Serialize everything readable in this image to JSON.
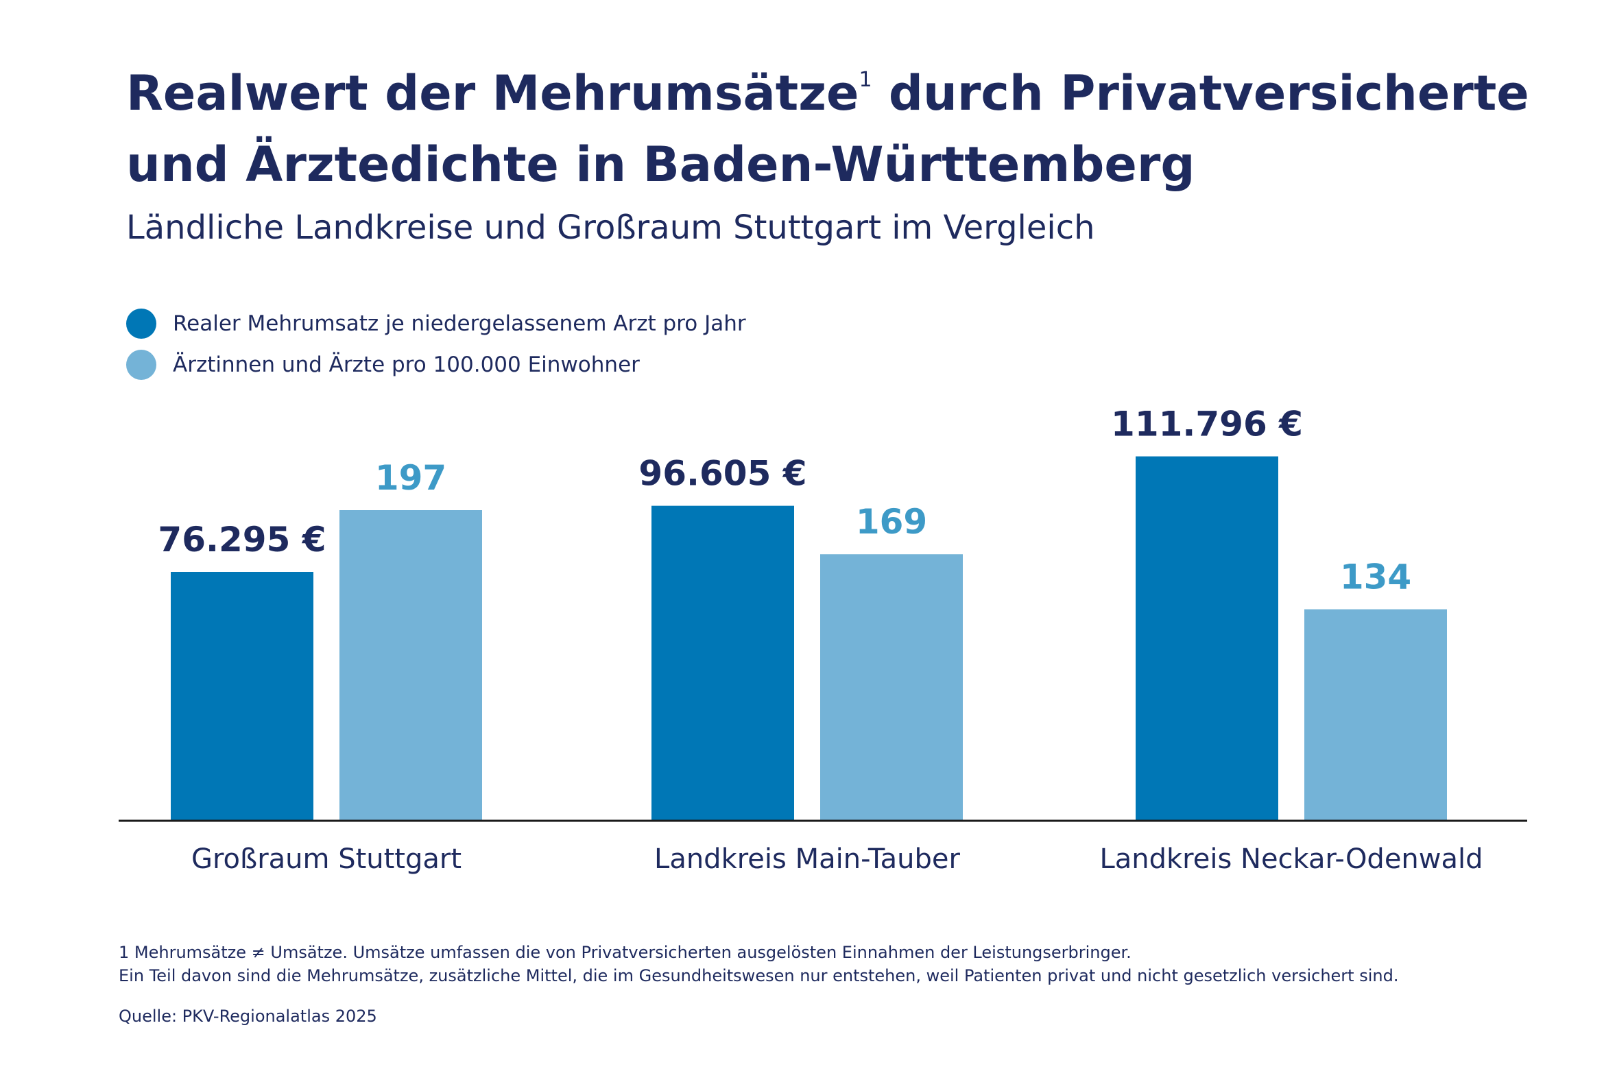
{
  "header": {
    "title_line1_a": "Realwert der Mehrumsätze",
    "title_footnote_mark": "1",
    "title_line1_b": " durch Privatversicherte",
    "title_line2": "und Ärztedichte in Baden-Württemberg",
    "subtitle": "Ländliche Landkreise und Großraum Stuttgart im Vergleich"
  },
  "colors": {
    "series_dark": "#0077b6",
    "series_light": "#74b3d7",
    "label_dark": "#1e2a5e",
    "label_light": "#3d9ac7",
    "axis": "#1a1a1a",
    "text": "#1e2a5e"
  },
  "chart_data": {
    "type": "bar",
    "categories": [
      "Großraum Stuttgart",
      "Landkreis Main-Tauber",
      "Landkreis Neckar-Odenwald"
    ],
    "series": [
      {
        "name": "Realer Mehrumsatz je niedergelassenem Arzt pro Jahr",
        "values": [
          76295,
          96605,
          111796
        ],
        "labels": [
          "76.295 €",
          "96.605 €",
          "111.796 €"
        ],
        "color_key": "series_dark",
        "label_color_key": "label_dark"
      },
      {
        "name": "Ärztinnen und Ärzte pro 100.000 Einwohner",
        "values": [
          197,
          169,
          134
        ],
        "labels": [
          "197",
          "169",
          "134"
        ],
        "color_key": "series_light",
        "label_color_key": "label_light"
      }
    ],
    "legend_position": "top-left",
    "grid": false
  },
  "footnote": {
    "line1": "1  Mehrumsätze ≠ Umsätze. Umsätze umfassen die von Privatversicherten ausgelösten Einnahmen der Leistungserbringer.",
    "line2": "Ein Teil davon sind die Mehrumsätze, zusätzliche Mittel, die im Gesundheitswesen nur entstehen, weil Patienten privat und nicht gesetzlich versichert sind."
  },
  "source": "Quelle: PKV-Regionalatlas 2025"
}
